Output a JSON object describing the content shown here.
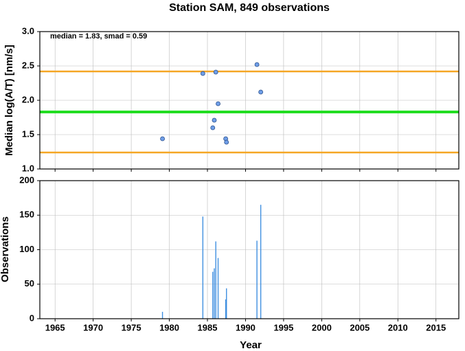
{
  "chart_data": [
    {
      "type": "scatter",
      "title": "Station SAM, 849 observations",
      "ylabel": "Median log(A/T) [nm/s]",
      "annotation": "median = 1.83, smad = 0.59",
      "x": [
        1979.1,
        1984.4,
        1985.7,
        1985.9,
        1986.1,
        1986.4,
        1987.4,
        1987.5,
        1991.5,
        1992.0
      ],
      "values": [
        1.44,
        2.39,
        1.6,
        1.71,
        2.41,
        1.95,
        1.44,
        1.39,
        2.52,
        2.12
      ],
      "color": "#6f9ee8",
      "hlines": [
        {
          "value": 1.83,
          "color": "#22dd22"
        },
        {
          "value": 2.42,
          "color": "#f5a623"
        },
        {
          "value": 1.24,
          "color": "#f5a623"
        }
      ],
      "xlim": [
        1963,
        2018
      ],
      "xticks": [
        1965,
        1970,
        1975,
        1980,
        1985,
        1990,
        1995,
        2000,
        2005,
        2010,
        2015
      ],
      "ylim": [
        1.0,
        3.0
      ],
      "yticks": [
        {
          "value": 1.0,
          "label": "1.0"
        },
        {
          "value": 1.5,
          "label": "1.5"
        },
        {
          "value": 2.0,
          "label": "2.0"
        },
        {
          "value": 2.5,
          "label": "2.5"
        },
        {
          "value": 3.0,
          "label": "3.0"
        }
      ],
      "grid": true
    },
    {
      "type": "bar",
      "ylabel": "Observations",
      "xlabel": "Year",
      "x": [
        1979.1,
        1984.4,
        1985.7,
        1985.9,
        1986.1,
        1986.4,
        1987.4,
        1987.5,
        1991.5,
        1992.0
      ],
      "values": [
        10,
        148,
        68,
        73,
        112,
        88,
        28,
        44,
        113,
        165
      ],
      "color": "#3f8fe0",
      "xlim": [
        1963,
        2018
      ],
      "xticks": [
        1965,
        1970,
        1975,
        1980,
        1985,
        1990,
        1995,
        2000,
        2005,
        2010,
        2015
      ],
      "ylim": [
        0,
        200
      ],
      "yticks": [
        0,
        50,
        100,
        150,
        200
      ],
      "grid": true
    }
  ]
}
